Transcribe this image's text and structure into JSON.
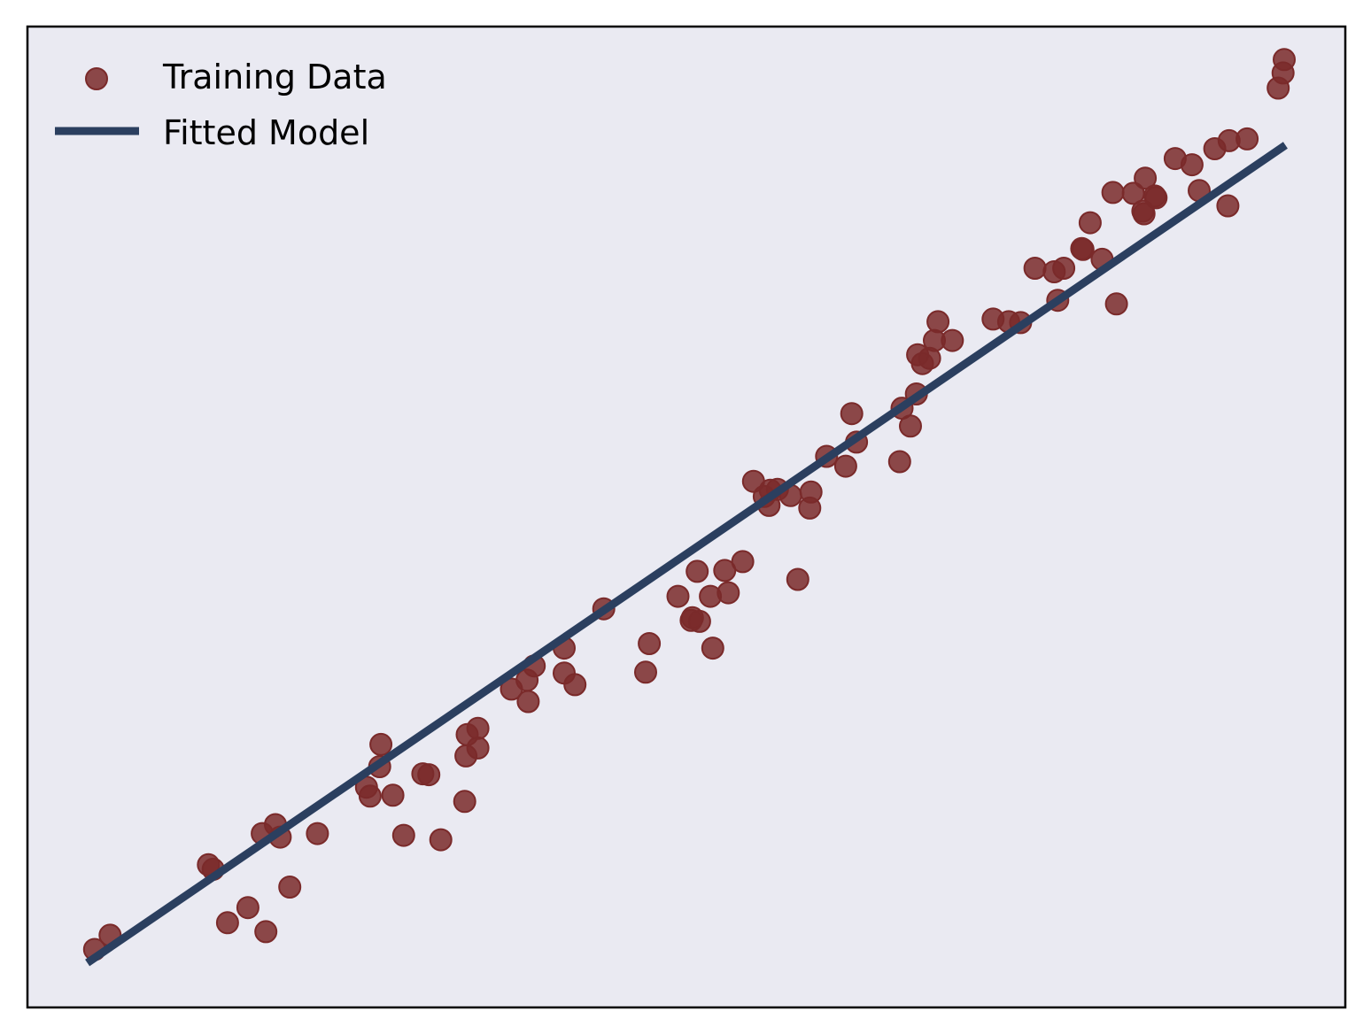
{
  "chart_data": {
    "type": "scatter",
    "title": "",
    "xlabel": "",
    "ylabel": "",
    "xlim": [
      -0.05,
      1.05
    ],
    "ylim": [
      -0.05,
      1.05
    ],
    "grid": false,
    "ticks_visible": false,
    "legend_position": "top-left",
    "series": [
      {
        "name": "Training Data",
        "kind": "scatter",
        "color": "#7a2a2a",
        "x": [
          0.006,
          0.019,
          0.101,
          0.105,
          0.117,
          0.134,
          0.146,
          0.149,
          0.157,
          0.161,
          0.169,
          0.192,
          0.233,
          0.236,
          0.244,
          0.245,
          0.255,
          0.264,
          0.28,
          0.285,
          0.295,
          0.315,
          0.316,
          0.317,
          0.326,
          0.326,
          0.354,
          0.367,
          0.368,
          0.373,
          0.398,
          0.398,
          0.407,
          0.431,
          0.466,
          0.469,
          0.493,
          0.504,
          0.505,
          0.509,
          0.511,
          0.52,
          0.522,
          0.532,
          0.535,
          0.547,
          0.556,
          0.565,
          0.569,
          0.57,
          0.576,
          0.587,
          0.593,
          0.603,
          0.604,
          0.617,
          0.633,
          0.638,
          0.642,
          0.678,
          0.68,
          0.687,
          0.692,
          0.693,
          0.697,
          0.703,
          0.707,
          0.71,
          0.722,
          0.756,
          0.769,
          0.779,
          0.791,
          0.807,
          0.81,
          0.815,
          0.83,
          0.831,
          0.837,
          0.847,
          0.856,
          0.859,
          0.873,
          0.881,
          0.882,
          0.883,
          0.891,
          0.892,
          0.908,
          0.922,
          0.928,
          0.941,
          0.952,
          0.953,
          0.968,
          0.994,
          0.998,
          0.999
        ],
        "y": [
          0.015,
          0.031,
          0.11,
          0.105,
          0.045,
          0.062,
          0.145,
          0.035,
          0.155,
          0.141,
          0.085,
          0.145,
          0.197,
          0.187,
          0.22,
          0.245,
          0.188,
          0.143,
          0.212,
          0.211,
          0.138,
          0.181,
          0.232,
          0.256,
          0.241,
          0.263,
          0.307,
          0.317,
          0.293,
          0.333,
          0.325,
          0.353,
          0.312,
          0.397,
          0.326,
          0.358,
          0.411,
          0.384,
          0.387,
          0.439,
          0.383,
          0.411,
          0.353,
          0.44,
          0.415,
          0.45,
          0.54,
          0.523,
          0.513,
          0.53,
          0.531,
          0.524,
          0.43,
          0.51,
          0.528,
          0.568,
          0.557,
          0.616,
          0.584,
          0.562,
          0.622,
          0.602,
          0.638,
          0.682,
          0.672,
          0.678,
          0.698,
          0.719,
          0.698,
          0.722,
          0.719,
          0.718,
          0.779,
          0.775,
          0.743,
          0.779,
          0.801,
          0.8,
          0.83,
          0.789,
          0.864,
          0.739,
          0.863,
          0.843,
          0.84,
          0.88,
          0.86,
          0.858,
          0.902,
          0.895,
          0.866,
          0.913,
          0.849,
          0.922,
          0.924,
          0.981,
          0.998,
          1.013
        ]
      },
      {
        "name": "Fitted Model",
        "kind": "line",
        "color": "#2b3f5f",
        "x": [
          0.0,
          1.0
        ],
        "y": [
          0.0,
          0.917
        ]
      }
    ]
  },
  "style": {
    "plot_background": "#eaeaf2",
    "border_color": "#000000"
  }
}
